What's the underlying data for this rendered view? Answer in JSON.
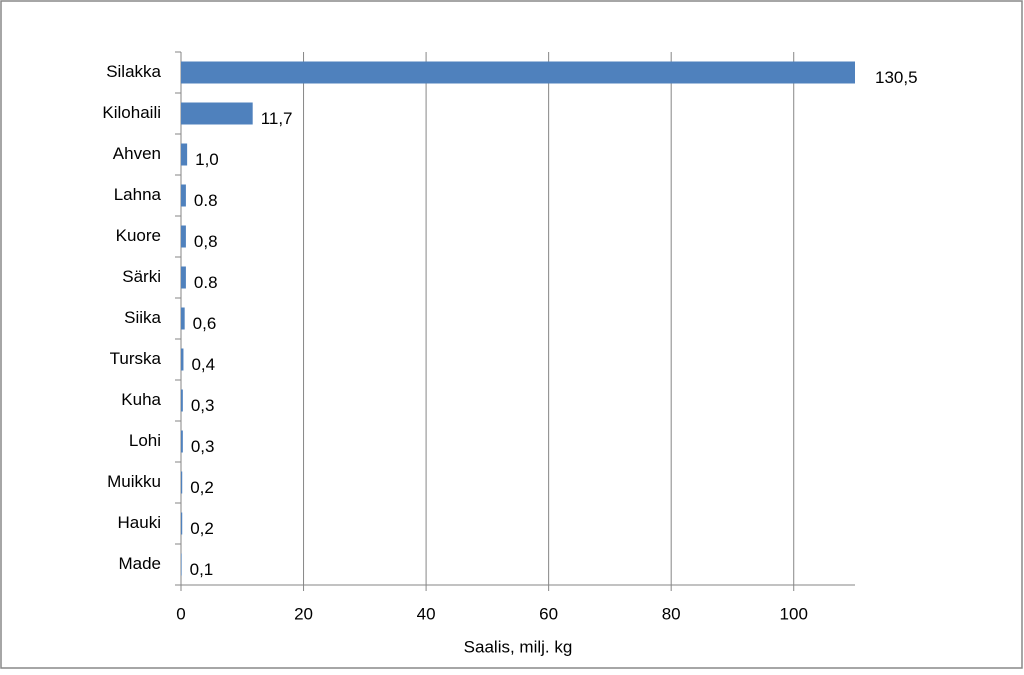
{
  "chart_data": {
    "type": "hbar",
    "xlabel": "Saalis, milj. kg",
    "categories": [
      "Silakka",
      "Kilohaili",
      "Ahven",
      "Lahna",
      "Kuore",
      "Särki",
      "Siika",
      "Turska",
      "Kuha",
      "Lohi",
      "Muikku",
      "Hauki",
      "Made"
    ],
    "values": [
      130.5,
      11.7,
      1.0,
      0.8,
      0.8,
      0.8,
      0.6,
      0.4,
      0.3,
      0.3,
      0.2,
      0.2,
      0.1
    ],
    "value_labels": [
      "130,5",
      "11,7",
      "1,0",
      "0.8",
      "0,8",
      "0.8",
      "0,6",
      "0,4",
      "0,3",
      "0,3",
      "0,2",
      "0,2",
      "0,1"
    ],
    "color": "#4f81bd",
    "xlim": [
      0,
      110
    ],
    "xticks": [
      0,
      20,
      40,
      60,
      80,
      100
    ],
    "grid": true
  }
}
